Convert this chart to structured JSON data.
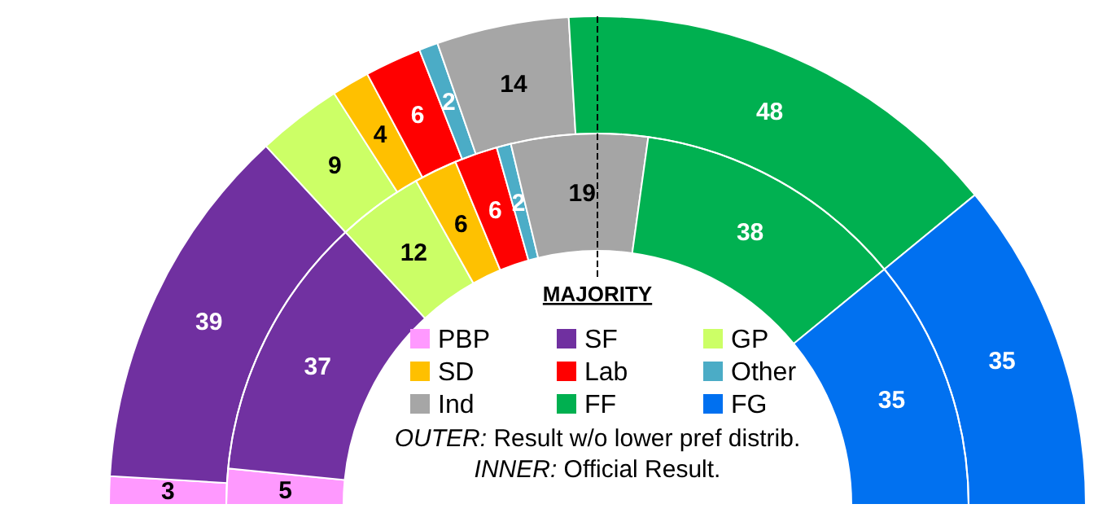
{
  "chart_data": {
    "type": "donut",
    "categories": [
      "PBP",
      "SF",
      "GP",
      "SD",
      "Lab",
      "Other",
      "Ind",
      "FF",
      "FG"
    ],
    "colors": [
      "#ff99ff",
      "#7030a0",
      "#ccff66",
      "#ffc000",
      "#ff0000",
      "#4bacc6",
      "#a6a6a6",
      "#00b050",
      "#0070f0"
    ],
    "series": [
      {
        "values": [
          3,
          39,
          9,
          4,
          6,
          2,
          14,
          48,
          35
        ]
      },
      {
        "values": [
          5,
          37,
          12,
          6,
          6,
          2,
          19,
          38,
          35
        ],
        "colors": [
          "#fe99fe",
          "#7131a1",
          "#cbfe66",
          "#fec101",
          "#fe0101",
          "#4cadc7",
          "#a5a5a5",
          "#01b151",
          "#0171f0"
        ]
      }
    ],
    "data_labels": true,
    "legend": "center",
    "annotations": [
      "MAJORITY",
      "OUTER: Result  w/o lower pref distrib.",
      "INNER: Official Result."
    ]
  }
}
